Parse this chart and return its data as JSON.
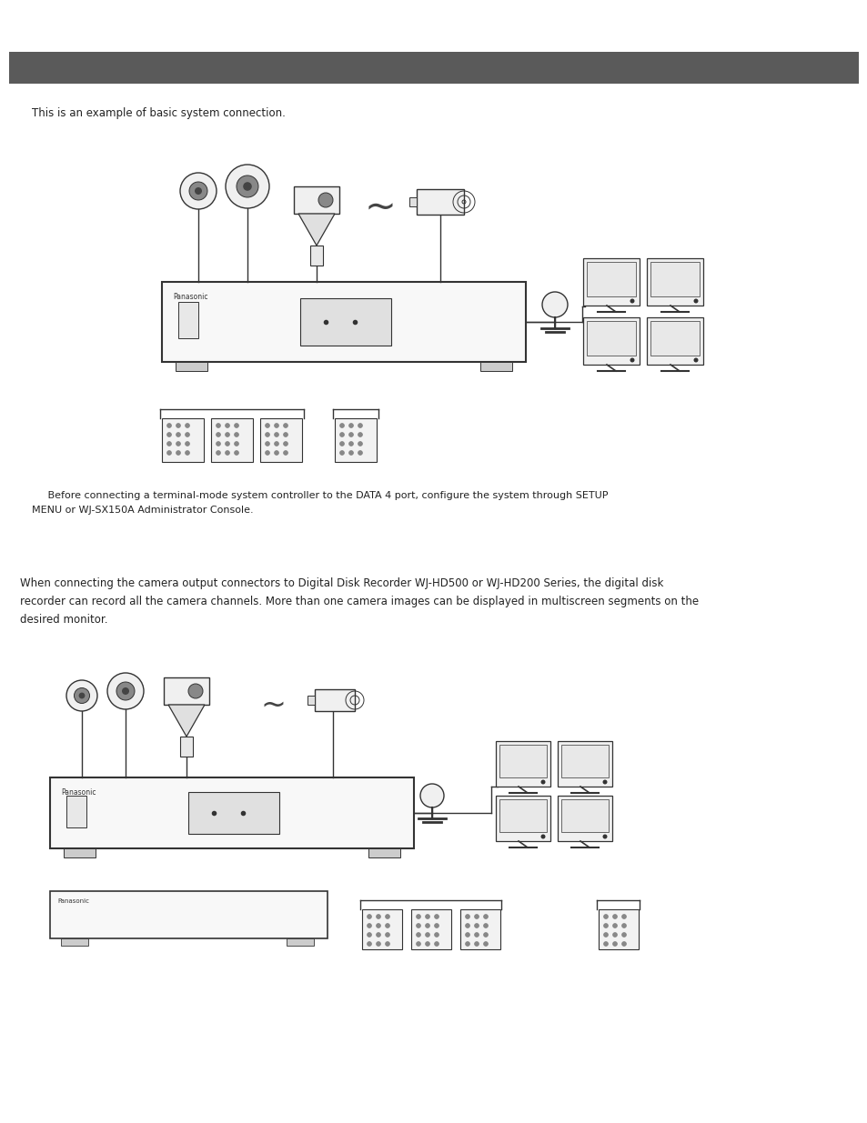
{
  "page_bg": "#ffffff",
  "header_bg": "#5a5a5a",
  "section1_text": "This is an example of basic system connection.",
  "note_text": "     Before connecting a terminal-mode system controller to the DATA 4 port, configure the system through SETUP\nMENU or WJ-SX150A Administrator Console.",
  "section2_text": "When connecting the camera output connectors to Digital Disk Recorder WJ-HD500 or WJ-HD200 Series, the digital disk\nrecorder can record all the camera channels. More than one camera images can be displayed in multiscreen segments on the\ndesired monitor.",
  "font_size_body": 8.5,
  "font_size_note": 8.0,
  "text_color": "#222222",
  "line_color": "#333333"
}
